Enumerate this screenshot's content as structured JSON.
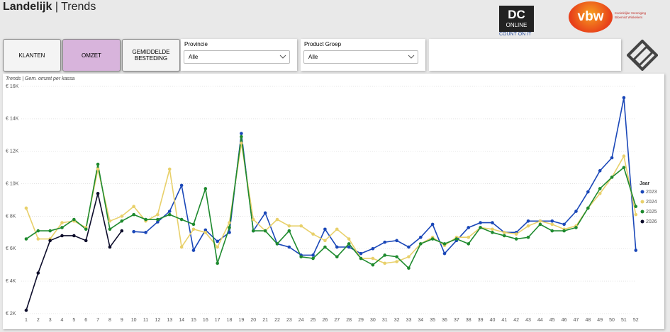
{
  "header": {
    "title_bold": "Landelijk",
    "title_rest": "| Trends"
  },
  "logos": {
    "dc_top": "DC",
    "dc_bottom": "ONLINE",
    "dc_tagline": "COUNT ON IT",
    "vbw": "vbw",
    "vbw_line1": "Koninklijke Vereniging",
    "vbw_line2": "Bloemist Winkeliers"
  },
  "buttons": [
    {
      "label": "KLANTEN"
    },
    {
      "label": "OMZET"
    },
    {
      "label": "GEMIDDELDE BESTEDING"
    }
  ],
  "filters": [
    {
      "label": "Provincie",
      "value": "Alle"
    },
    {
      "label": "Product Groep",
      "value": "Alle"
    }
  ],
  "chart_data": {
    "type": "line",
    "title": "Trends | Gem. omzet per kassa",
    "categories": [
      "1",
      "2",
      "3",
      "4",
      "5",
      "6",
      "7",
      "8",
      "9",
      "10",
      "11",
      "12",
      "13",
      "14",
      "15",
      "16",
      "17",
      "18",
      "19",
      "20",
      "21",
      "22",
      "23",
      "24",
      "25",
      "26",
      "27",
      "28",
      "29",
      "30",
      "31",
      "32",
      "33",
      "34",
      "35",
      "36",
      "37",
      "38",
      "39",
      "40",
      "41",
      "42",
      "43",
      "44",
      "45",
      "46",
      "47",
      "48",
      "49",
      "50",
      "51",
      "52"
    ],
    "ylim": [
      2000,
      16000
    ],
    "yticks": [
      {
        "value": 2000,
        "label": "€ 2K"
      },
      {
        "value": 4000,
        "label": "€ 4K"
      },
      {
        "value": 6000,
        "label": "€ 6K"
      },
      {
        "value": 8000,
        "label": "€ 8K"
      },
      {
        "value": 10000,
        "label": "€ 10K"
      },
      {
        "value": 12000,
        "label": "€ 12K"
      },
      {
        "value": 14000,
        "label": "€ 14K"
      },
      {
        "value": 16000,
        "label": "€ 16K"
      }
    ],
    "grid": true,
    "legend_title": "Jaar",
    "legend_position": "right",
    "series": [
      {
        "name": "2023",
        "color": "#1a47b8",
        "values": [
          null,
          null,
          null,
          null,
          null,
          null,
          null,
          null,
          null,
          7050,
          7000,
          7650,
          8300,
          9900,
          5900,
          7150,
          6450,
          7000,
          13100,
          7100,
          8200,
          6300,
          6100,
          5600,
          5600,
          7200,
          6100,
          6100,
          5700,
          6000,
          6400,
          6500,
          6100,
          6700,
          7500,
          5700,
          6500,
          7300,
          7600,
          7600,
          7000,
          7000,
          7700,
          7700,
          7700,
          7500,
          8300,
          9500,
          10800,
          11600,
          15300,
          5900
        ]
      },
      {
        "name": "2024",
        "color": "#e8d06a",
        "values": [
          8500,
          6600,
          6600,
          7600,
          7700,
          7300,
          10900,
          7700,
          8000,
          8600,
          7700,
          8100,
          10900,
          6100,
          7200,
          7000,
          6100,
          7600,
          12500,
          7800,
          7100,
          7800,
          7400,
          7400,
          6900,
          6500,
          7200,
          6600,
          5400,
          5400,
          5100,
          5200,
          5500,
          6300,
          6700,
          6200,
          6700,
          6700,
          7300,
          7200,
          7000,
          6900,
          7400,
          7700,
          7500,
          7200,
          7400,
          8500,
          9400,
          10400,
          11700,
          8100
        ]
      },
      {
        "name": "2025",
        "color": "#1e8a2e",
        "values": [
          6600,
          7100,
          7100,
          7300,
          7800,
          7200,
          11200,
          7200,
          7700,
          8100,
          7800,
          7800,
          8100,
          7800,
          7500,
          9700,
          5100,
          7300,
          12900,
          7100,
          7100,
          6300,
          7100,
          5500,
          5400,
          6100,
          5500,
          6300,
          5400,
          5000,
          5600,
          5500,
          4800,
          6300,
          6600,
          6300,
          6600,
          6300,
          7300,
          7000,
          6800,
          6600,
          6700,
          7500,
          7100,
          7100,
          7300,
          8500,
          9700,
          10400,
          11000,
          8600
        ]
      },
      {
        "name": "2026",
        "color": "#0d0d2b",
        "values": [
          2200,
          4500,
          6500,
          6800,
          6800,
          6500,
          9400,
          6100,
          7100,
          null,
          null,
          null,
          null,
          null,
          null,
          null,
          null,
          null,
          null,
          null,
          null,
          null,
          null,
          null,
          null,
          null,
          null,
          null,
          null,
          null,
          null,
          null,
          null,
          null,
          null,
          null,
          null,
          null,
          null,
          null,
          null,
          null,
          null,
          null,
          null,
          null,
          null,
          null,
          null,
          null,
          null,
          null
        ]
      }
    ]
  }
}
